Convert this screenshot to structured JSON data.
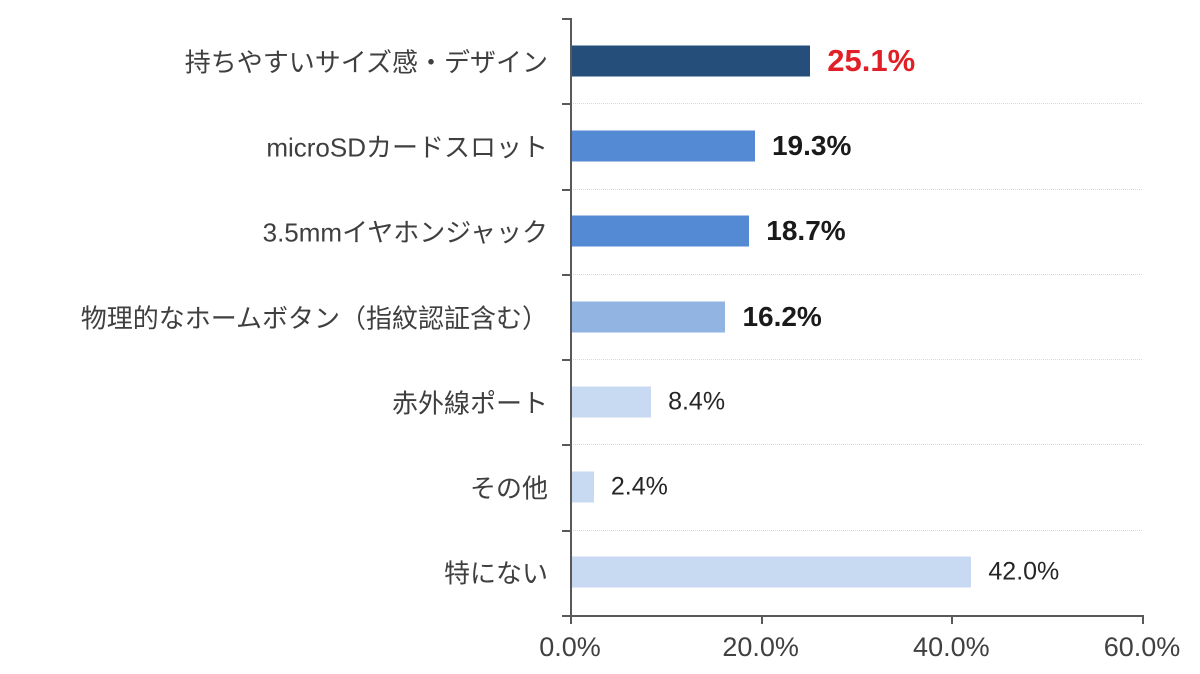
{
  "chart_data": {
    "type": "bar",
    "orientation": "horizontal",
    "title": "",
    "xlabel": "",
    "ylabel": "",
    "x_axis": {
      "min": 0,
      "max": 60,
      "tick_step": 20,
      "ticks": [
        "0.0%",
        "20.0%",
        "40.0%",
        "60.0%"
      ]
    },
    "grid": "faint-dotted-category-boundaries",
    "legend": "none",
    "rows": [
      {
        "label": "持ちやすいサイズ感・デザイン",
        "value": 25.1,
        "display": "25.1%",
        "bar_color": "#254E7B",
        "value_style": "emphasis"
      },
      {
        "label": "microSDカードスロット",
        "value": 19.3,
        "display": "19.3%",
        "bar_color": "#5489D3",
        "value_style": "bold"
      },
      {
        "label": "3.5mmイヤホンジャック",
        "value": 18.7,
        "display": "18.7%",
        "bar_color": "#5489D3",
        "value_style": "bold"
      },
      {
        "label": "物理的なホームボタン（指紋認証含む）",
        "value": 16.2,
        "display": "16.2%",
        "bar_color": "#92B4E2",
        "value_style": "bold"
      },
      {
        "label": "赤外線ポート",
        "value": 8.4,
        "display": "8.4%",
        "bar_color": "#C7DAF1",
        "value_style": "normal"
      },
      {
        "label": "その他",
        "value": 2.4,
        "display": "2.4%",
        "bar_color": "#C7DAF1",
        "value_style": "normal"
      },
      {
        "label": "特にない",
        "value": 42.0,
        "display": "42.0%",
        "bar_color": "#C7DAF1",
        "value_style": "normal"
      }
    ],
    "colors": {
      "emphasis_value": "#E01F26",
      "category_text": "#3F3F3F",
      "tick_text": "#404040",
      "axis": "#595959",
      "gridline": "#D9D9D9"
    }
  }
}
